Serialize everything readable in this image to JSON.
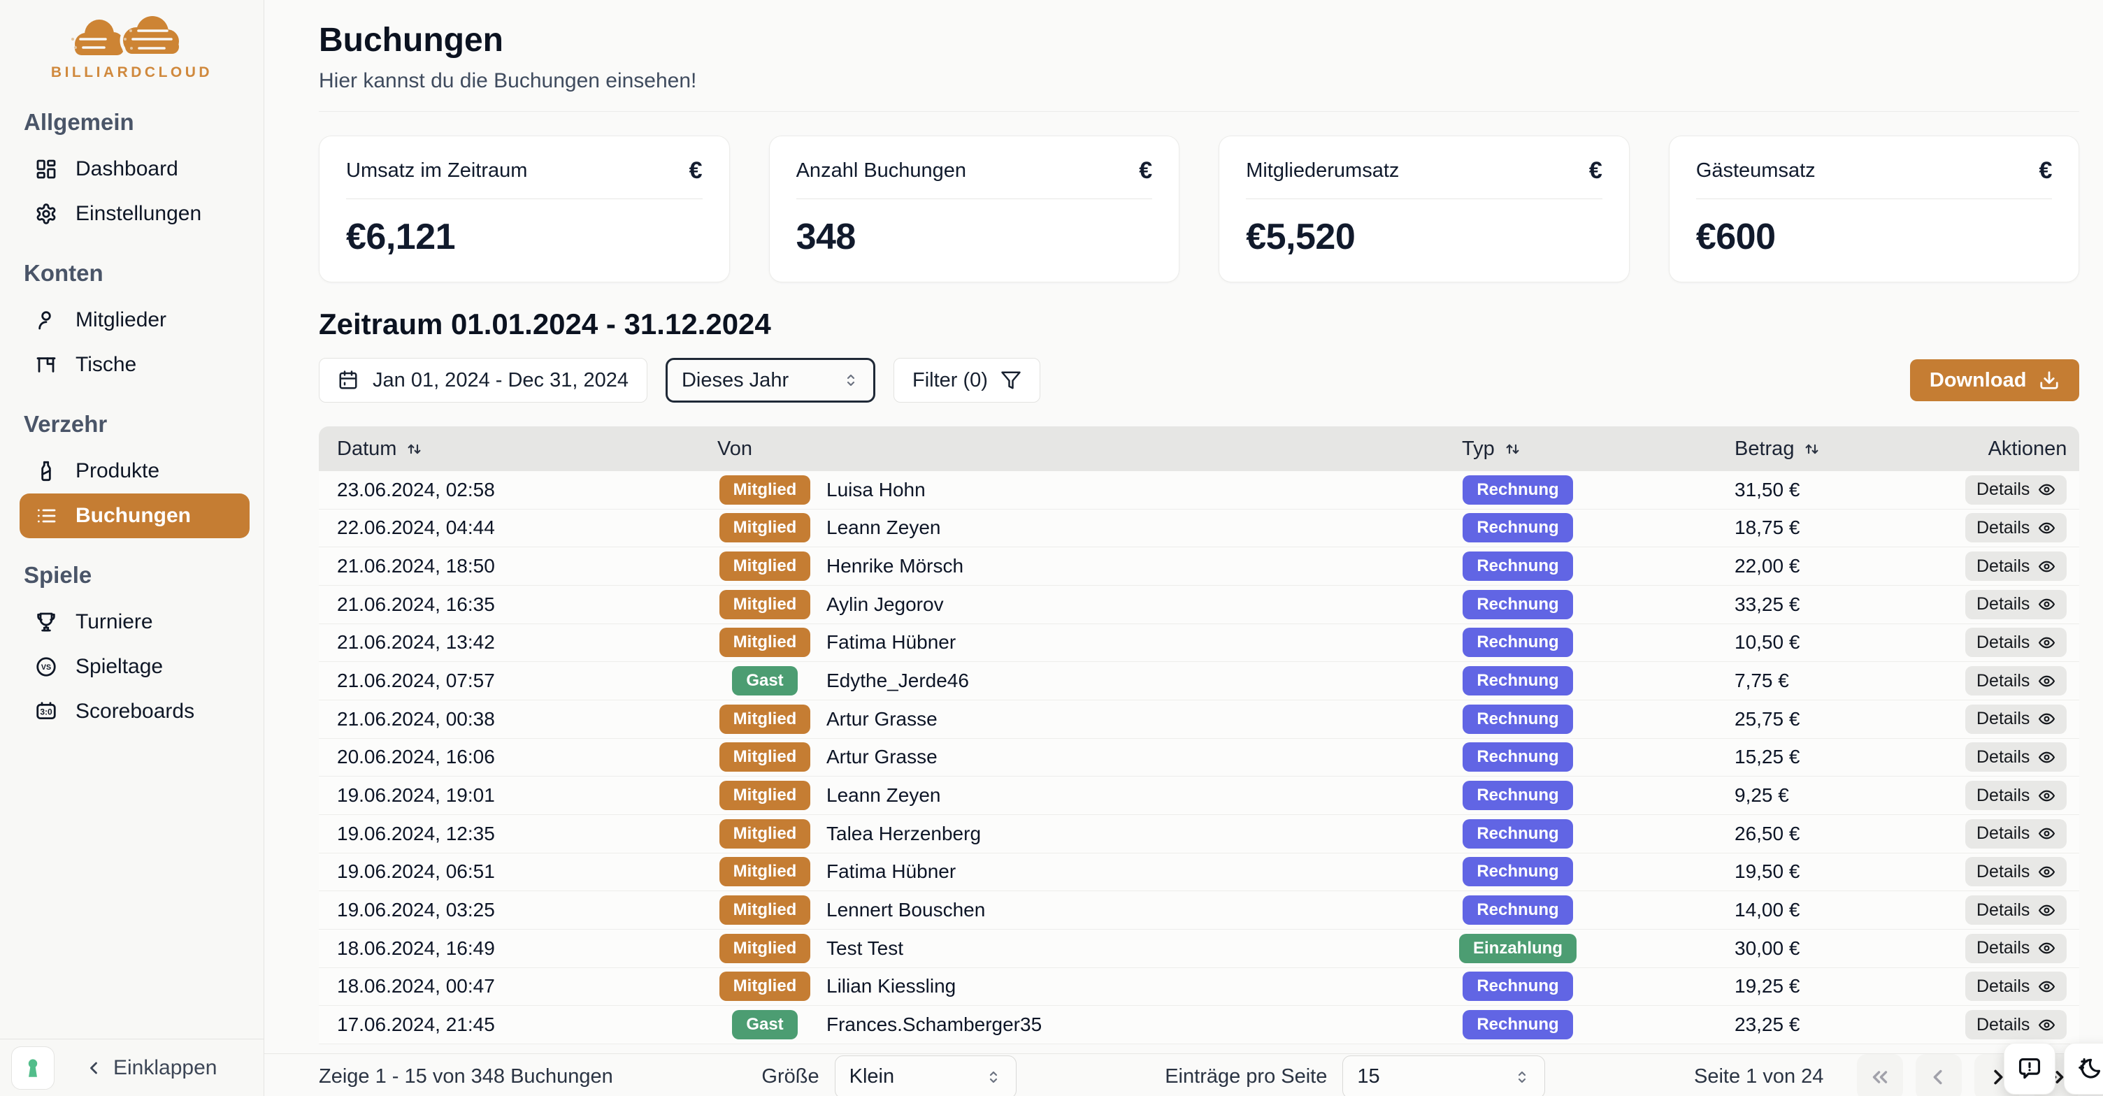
{
  "brand": {
    "name": "BILLIARDCLOUD"
  },
  "colors": {
    "accent_orange": "#c57d33",
    "badge_green": "#4c9d72",
    "badge_indigo": "#6165e4"
  },
  "sidebar": {
    "collapse_label": "Einklappen",
    "sections": [
      {
        "label": "Allgemein",
        "items": [
          {
            "label": "Dashboard",
            "icon": "dashboard-icon",
            "active": false
          },
          {
            "label": "Einstellungen",
            "icon": "gear-icon",
            "active": false
          }
        ]
      },
      {
        "label": "Konten",
        "items": [
          {
            "label": "Mitglieder",
            "icon": "user-icon",
            "active": false
          },
          {
            "label": "Tische",
            "icon": "table-icon",
            "active": false
          }
        ]
      },
      {
        "label": "Verzehr",
        "items": [
          {
            "label": "Produkte",
            "icon": "bottle-icon",
            "active": false
          },
          {
            "label": "Buchungen",
            "icon": "list-icon",
            "active": true
          }
        ]
      },
      {
        "label": "Spiele",
        "items": [
          {
            "label": "Turniere",
            "icon": "trophy-icon",
            "active": false
          },
          {
            "label": "Spieltage",
            "icon": "versus-icon",
            "active": false
          },
          {
            "label": "Scoreboards",
            "icon": "scoreboard-icon",
            "active": false
          }
        ]
      }
    ]
  },
  "header": {
    "title": "Buchungen",
    "subtitle": "Hier kannst du die Buchungen einsehen!"
  },
  "stats": [
    {
      "label": "Umsatz im Zeitraum",
      "value": "€6,121",
      "icon": "€"
    },
    {
      "label": "Anzahl Buchungen",
      "value": "348",
      "icon": "€"
    },
    {
      "label": "Mitgliederumsatz",
      "value": "€5,520",
      "icon": "€"
    },
    {
      "label": "Gästeumsatz",
      "value": "€600",
      "icon": "€"
    }
  ],
  "period": {
    "heading": "Zeitraum 01.01.2024 - 31.12.2024",
    "date_range": "Jan 01, 2024 - Dec 31, 2024",
    "preset": "Dieses Jahr",
    "filter_label": "Filter (0)",
    "download_label": "Download"
  },
  "table": {
    "columns": [
      "Datum",
      "Von",
      "Typ",
      "Betrag",
      "Aktionen"
    ],
    "details_label": "Details",
    "rows": [
      {
        "date": "23.06.2024, 02:58",
        "von_badge": "Mitglied",
        "name": "Luisa Hohn",
        "typ": "Rechnung",
        "betrag": "31,50 €"
      },
      {
        "date": "22.06.2024, 04:44",
        "von_badge": "Mitglied",
        "name": "Leann Zeyen",
        "typ": "Rechnung",
        "betrag": "18,75 €"
      },
      {
        "date": "21.06.2024, 18:50",
        "von_badge": "Mitglied",
        "name": "Henrike Mörsch",
        "typ": "Rechnung",
        "betrag": "22,00 €"
      },
      {
        "date": "21.06.2024, 16:35",
        "von_badge": "Mitglied",
        "name": "Aylin Jegorov",
        "typ": "Rechnung",
        "betrag": "33,25 €"
      },
      {
        "date": "21.06.2024, 13:42",
        "von_badge": "Mitglied",
        "name": "Fatima Hübner",
        "typ": "Rechnung",
        "betrag": "10,50 €"
      },
      {
        "date": "21.06.2024, 07:57",
        "von_badge": "Gast",
        "name": "Edythe_Jerde46",
        "typ": "Rechnung",
        "betrag": "7,75 €"
      },
      {
        "date": "21.06.2024, 00:38",
        "von_badge": "Mitglied",
        "name": "Artur Grasse",
        "typ": "Rechnung",
        "betrag": "25,75 €"
      },
      {
        "date": "20.06.2024, 16:06",
        "von_badge": "Mitglied",
        "name": "Artur Grasse",
        "typ": "Rechnung",
        "betrag": "15,25 €"
      },
      {
        "date": "19.06.2024, 19:01",
        "von_badge": "Mitglied",
        "name": "Leann Zeyen",
        "typ": "Rechnung",
        "betrag": "9,25 €"
      },
      {
        "date": "19.06.2024, 12:35",
        "von_badge": "Mitglied",
        "name": "Talea Herzenberg",
        "typ": "Rechnung",
        "betrag": "26,50 €"
      },
      {
        "date": "19.06.2024, 06:51",
        "von_badge": "Mitglied",
        "name": "Fatima Hübner",
        "typ": "Rechnung",
        "betrag": "19,50 €"
      },
      {
        "date": "19.06.2024, 03:25",
        "von_badge": "Mitglied",
        "name": "Lennert Bouschen",
        "typ": "Rechnung",
        "betrag": "14,00 €"
      },
      {
        "date": "18.06.2024, 16:49",
        "von_badge": "Mitglied",
        "name": "Test Test",
        "typ": "Einzahlung",
        "betrag": "30,00 €"
      },
      {
        "date": "18.06.2024, 00:47",
        "von_badge": "Mitglied",
        "name": "Lilian Kiessling",
        "typ": "Rechnung",
        "betrag": "19,25 €"
      },
      {
        "date": "17.06.2024, 21:45",
        "von_badge": "Gast",
        "name": "Frances.Schamberger35",
        "typ": "Rechnung",
        "betrag": "23,25 €"
      }
    ]
  },
  "footer": {
    "range_text": "Zeige 1 - 15 von 348 Buchungen",
    "size_label": "Größe",
    "size_value": "Klein",
    "per_page_label": "Einträge pro Seite",
    "per_page_value": "15",
    "page_text": "Seite 1 von 24"
  }
}
